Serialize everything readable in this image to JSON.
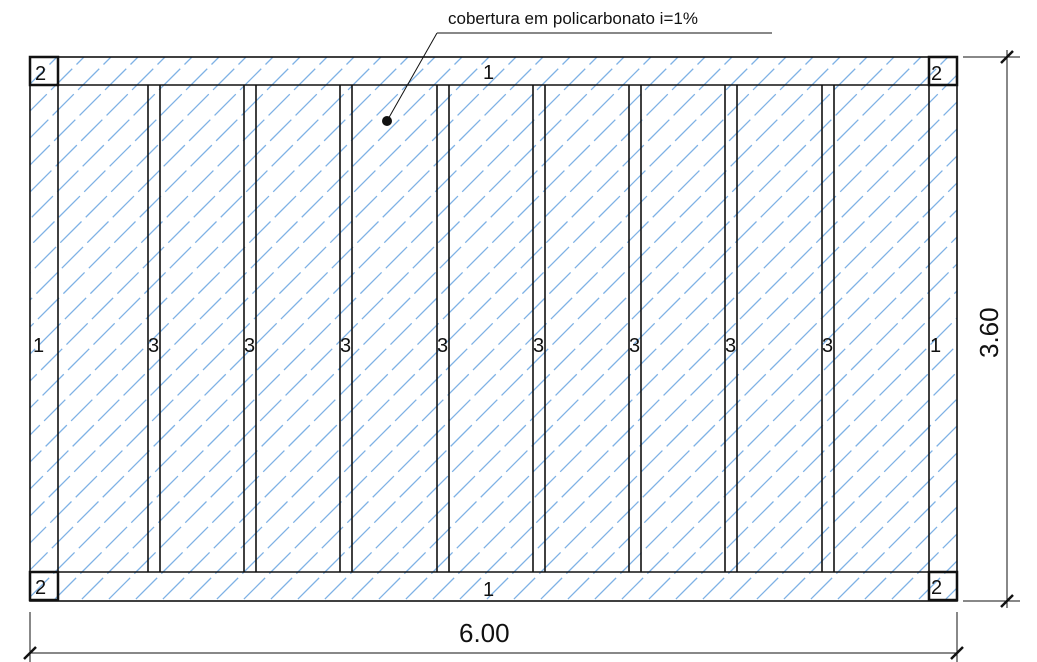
{
  "annotation": {
    "text": "cobertura em policarbonato  i=1%"
  },
  "labels": {
    "beam_horizontal": "1",
    "beam_vertical": "1",
    "column": "2",
    "purlin": "3"
  },
  "dimensions": {
    "width": "6.00",
    "height": "3.60"
  },
  "colors": {
    "line": "#111111",
    "hatch": "#7fb2e5",
    "background": "#ffffff"
  }
}
